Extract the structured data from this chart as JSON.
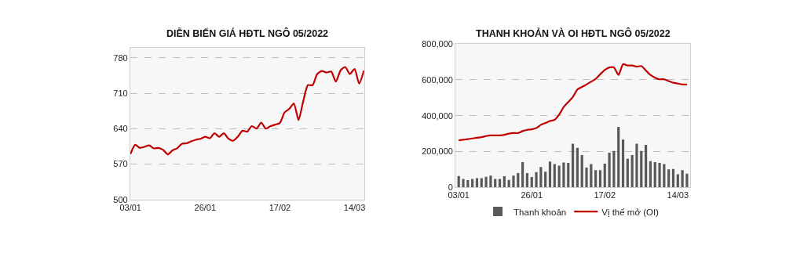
{
  "chart_data": [
    {
      "type": "line",
      "title": "DIỄN BIẾN GIÁ HĐTL NGÔ 05/2022",
      "categories": [
        "03/01",
        null,
        null,
        null,
        null,
        null,
        null,
        null,
        null,
        null,
        null,
        null,
        null,
        null,
        null,
        null,
        "26/01",
        null,
        null,
        null,
        null,
        null,
        null,
        null,
        null,
        null,
        null,
        null,
        null,
        null,
        null,
        null,
        "17/02",
        null,
        null,
        null,
        null,
        null,
        null,
        null,
        null,
        null,
        null,
        null,
        null,
        null,
        null,
        null,
        "14/03",
        null,
        null
      ],
      "series": [
        {
          "color": "#c00000",
          "values": [
            590,
            608,
            602,
            604,
            607,
            601,
            602,
            598,
            589,
            597,
            601,
            610,
            611,
            615,
            618,
            620,
            624,
            621,
            631,
            624,
            631,
            620,
            616,
            624,
            636,
            634,
            645,
            640,
            652,
            640,
            645,
            648,
            651,
            672,
            679,
            690,
            657,
            694,
            726,
            726,
            748,
            754,
            751,
            753,
            733,
            755,
            762,
            748,
            758,
            729,
            755
          ]
        }
      ],
      "ylim": [
        500,
        800
      ],
      "yticks": [
        500,
        570,
        640,
        710,
        780
      ],
      "grid": "y",
      "legend": false
    },
    {
      "type": "bar",
      "title": "THANH KHOẢN VÀ OI HĐTL NGÔ 05/2022",
      "categories": [
        "03/01",
        null,
        null,
        null,
        null,
        null,
        null,
        null,
        null,
        null,
        null,
        null,
        null,
        null,
        null,
        null,
        "26/01",
        null,
        null,
        null,
        null,
        null,
        null,
        null,
        null,
        null,
        null,
        null,
        null,
        null,
        null,
        null,
        "17/02",
        null,
        null,
        null,
        null,
        null,
        null,
        null,
        null,
        null,
        null,
        null,
        null,
        null,
        null,
        null,
        "14/03",
        null,
        null
      ],
      "series": [
        {
          "name": "Thanh khoản",
          "type": "bar",
          "color": "#595959",
          "values": [
            63000,
            47000,
            40000,
            47000,
            51000,
            51000,
            59000,
            65000,
            47000,
            47000,
            62000,
            42000,
            65000,
            80000,
            141000,
            80000,
            58000,
            85000,
            114000,
            87000,
            144000,
            130000,
            121000,
            139000,
            137000,
            244000,
            221000,
            180000,
            110000,
            130000,
            96000,
            96000,
            132000,
            193000,
            203000,
            337000,
            266000,
            159000,
            180000,
            244000,
            203000,
            237000,
            146000,
            141000,
            137000,
            130000,
            100000,
            103000,
            73000,
            96000,
            77000
          ]
        },
        {
          "name": "Vị thế mở (OI)",
          "type": "line",
          "color": "#c00000",
          "values": [
            262000,
            266000,
            269000,
            273000,
            277000,
            280000,
            286000,
            290000,
            290000,
            290000,
            293000,
            300000,
            303000,
            303000,
            314000,
            321000,
            324000,
            331000,
            349000,
            359000,
            370000,
            377000,
            406000,
            448000,
            476000,
            504000,
            546000,
            560000,
            574000,
            589000,
            605000,
            631000,
            655000,
            669000,
            669000,
            627000,
            687000,
            680000,
            680000,
            673000,
            677000,
            652000,
            627000,
            612000,
            603000,
            603000,
            593000,
            584000,
            579000,
            574000,
            574000
          ]
        }
      ],
      "ylim": [
        0,
        800000
      ],
      "yticks": [
        {
          "value": 0,
          "label": "0"
        },
        {
          "value": 200000,
          "label": "200,000"
        },
        {
          "value": 400000,
          "label": "400,000"
        },
        {
          "value": 600000,
          "label": "600,000"
        },
        {
          "value": 800000,
          "label": "800,000"
        }
      ],
      "grid": "y",
      "legend": "bottom"
    }
  ]
}
